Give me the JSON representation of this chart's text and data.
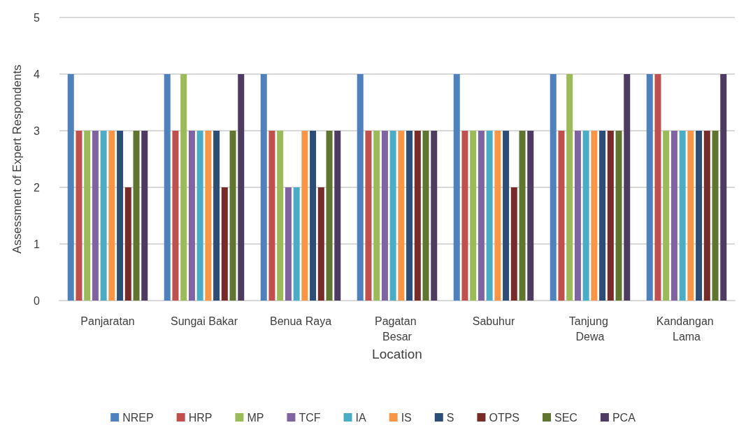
{
  "chart_data": {
    "type": "bar",
    "xlabel": "Location",
    "ylabel": "Assessment of Expert Respondents",
    "categories": [
      "Panjaratan",
      "Sungai Bakar",
      "Benua Raya",
      "Pagatan Besar",
      "Sabuhur",
      "Tanjung Dewa",
      "Kandangan Lama"
    ],
    "series": [
      {
        "name": "NREP",
        "color": "#4f81bd",
        "values": [
          4,
          4,
          4,
          4,
          4,
          4,
          4
        ]
      },
      {
        "name": "HRP",
        "color": "#c0504d",
        "values": [
          3,
          3,
          3,
          3,
          3,
          3,
          4
        ]
      },
      {
        "name": "MP",
        "color": "#9bbb59",
        "values": [
          3,
          4,
          3,
          3,
          3,
          4,
          3
        ]
      },
      {
        "name": "TCF",
        "color": "#8064a2",
        "values": [
          3,
          3,
          2,
          3,
          3,
          3,
          3
        ]
      },
      {
        "name": "IA",
        "color": "#4bacc6",
        "values": [
          3,
          3,
          2,
          3,
          3,
          3,
          3
        ]
      },
      {
        "name": "IS",
        "color": "#f79646",
        "values": [
          3,
          3,
          3,
          3,
          3,
          3,
          3
        ]
      },
      {
        "name": "S",
        "color": "#2c4d75",
        "values": [
          3,
          3,
          3,
          3,
          3,
          3,
          3
        ]
      },
      {
        "name": "OTPS",
        "color": "#772c2a",
        "values": [
          2,
          2,
          2,
          3,
          2,
          3,
          3
        ]
      },
      {
        "name": "SEC",
        "color": "#5f7530",
        "values": [
          3,
          3,
          3,
          3,
          3,
          3,
          3
        ]
      },
      {
        "name": "PCA",
        "color": "#4d3b62",
        "values": [
          3,
          4,
          3,
          3,
          3,
          4,
          4
        ]
      }
    ],
    "ylim": [
      0,
      5
    ],
    "yticks": [
      0,
      1,
      2,
      3,
      4,
      5
    ],
    "grid": "y",
    "legend": "bottom"
  }
}
